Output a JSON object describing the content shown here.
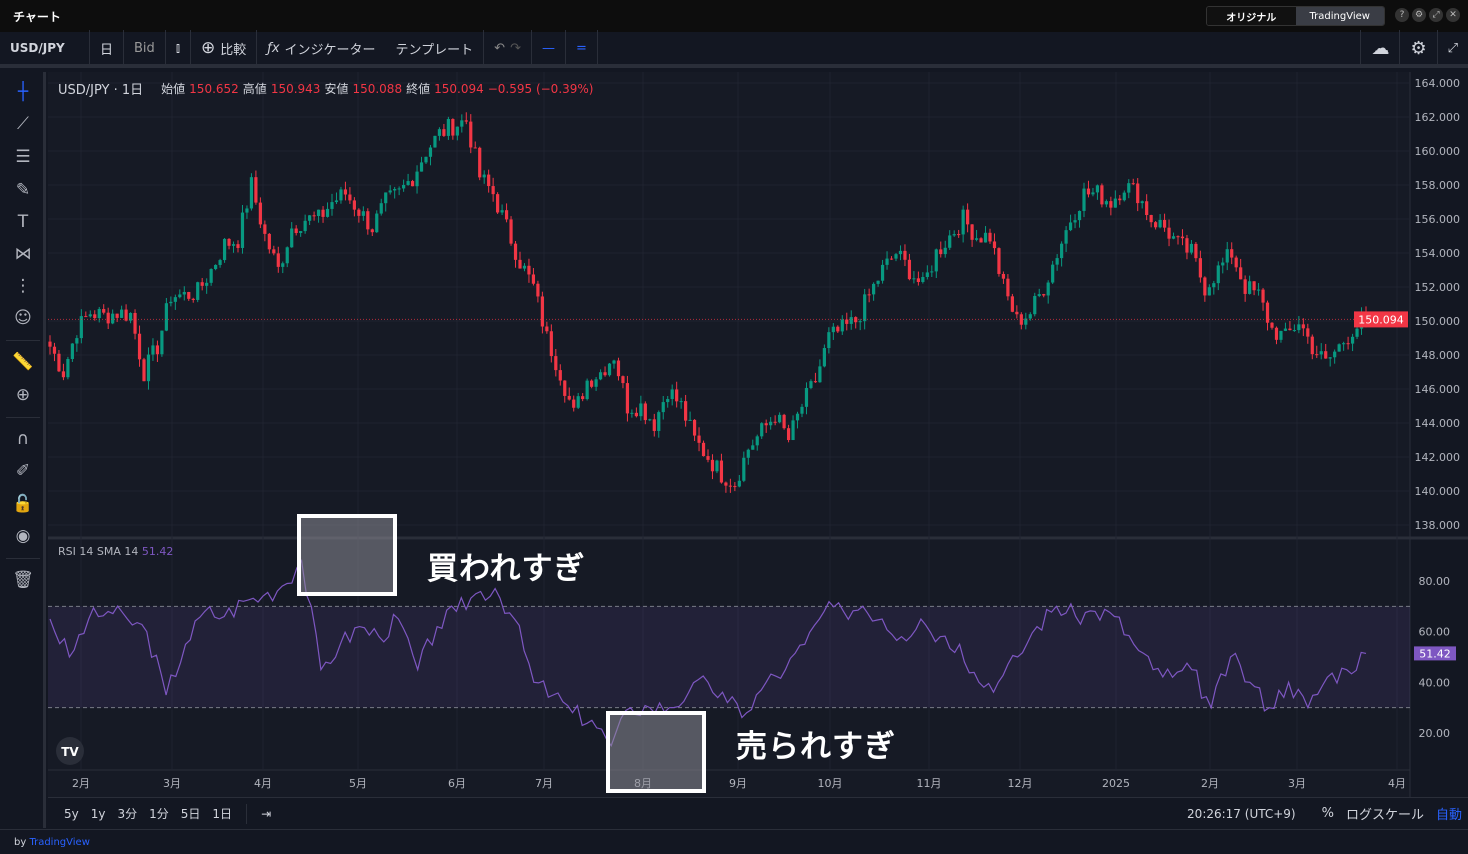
{
  "window": {
    "title": "チャート",
    "mode_tabs": [
      "オリジナル",
      "TradingView"
    ],
    "active_mode": "オリジナル",
    "buttons": [
      "?",
      "⚙",
      "⤢",
      "✕"
    ]
  },
  "toolbar": {
    "symbol": "USD/JPY",
    "interval": "日",
    "price_type": "Bid",
    "compare": "比較",
    "indicators": "インジケーター",
    "templates": "テンプレート"
  },
  "legend": {
    "symbol": "USD/JPY · 1日",
    "open_label": "始値",
    "open": "150.652",
    "high_label": "高値",
    "high": "150.943",
    "low_label": "安値",
    "low": "150.088",
    "close_label": "終値",
    "close": "150.094",
    "change": "−0.595 (−0.39%)"
  },
  "rsi_legend": {
    "name": "RSI 14 SMA 14",
    "value": "51.42"
  },
  "colors": {
    "up": "#089981",
    "down": "#f23645",
    "rsi": "#7e57c2",
    "bg": "#131722"
  },
  "annotations": {
    "overbought": "買われすぎ",
    "oversold": "売られすぎ"
  },
  "bottom": {
    "ranges": [
      "5y",
      "1y",
      "3分",
      "1分",
      "5日",
      "1日"
    ],
    "time": "20:26:17 (UTC+9)",
    "percent": "%",
    "log": "ログスケール",
    "auto": "自動"
  },
  "footer": {
    "by": "by",
    "brand": "TradingView"
  },
  "chart_data": [
    {
      "type": "candlestick",
      "yticks": [
        "164.000",
        "162.000",
        "160.000",
        "158.000",
        "156.000",
        "154.000",
        "152.000",
        "150.000",
        "148.000",
        "146.000",
        "144.000",
        "142.000",
        "140.000",
        "138.000"
      ],
      "ylim": [
        137.5,
        164.5
      ],
      "last_price": "150.094",
      "xticks": [
        "2月",
        "3月",
        "4月",
        "5月",
        "6月",
        "7月",
        "8月",
        "9月",
        "10月",
        "11月",
        "12月",
        "2025",
        "2月",
        "3月",
        "4月"
      ],
      "closes": [
        148.5,
        147,
        149.5,
        150.5,
        150.3,
        150.5,
        150.4,
        147,
        148.5,
        151.5,
        151.5,
        151.7,
        153,
        154.5,
        154.8,
        158,
        155,
        153,
        155.5,
        156,
        156,
        157,
        157.5,
        156.5,
        155.5,
        157,
        157.5,
        158.5,
        160,
        161,
        161.5,
        161.8,
        158.5,
        157.5,
        155.5,
        153.5,
        152,
        149,
        147,
        144.5,
        146.5,
        147,
        148,
        145,
        145,
        144,
        146,
        145,
        143,
        142,
        141,
        140.5,
        142.5,
        143.5,
        144.5,
        143,
        145,
        146.5,
        149,
        149.5,
        150,
        151.5,
        153,
        154,
        153,
        152,
        154,
        155,
        156,
        155,
        155,
        152,
        150,
        150.5,
        152,
        154,
        156,
        157.5,
        157.5,
        157,
        158,
        157.5,
        156,
        155.5,
        154.5,
        154,
        152,
        153,
        154,
        152,
        151.5,
        149.5,
        149,
        150,
        148.5,
        147.5,
        148.5,
        149.5,
        150.094
      ]
    },
    {
      "type": "line",
      "name": "RSI 14 SMA 14",
      "ylim": [
        10,
        90
      ],
      "yticks": [
        "80.00",
        "60.00",
        "40.00",
        "20.00"
      ],
      "bands": [
        30,
        70
      ],
      "last": "51.42",
      "values": [
        65,
        50,
        65,
        68,
        65,
        60,
        35,
        55,
        68,
        66,
        72,
        74,
        78,
        88,
        45,
        55,
        62,
        58,
        65,
        45,
        62,
        68,
        75,
        77,
        65,
        40,
        35,
        28,
        25,
        15,
        30,
        30,
        30,
        36,
        40,
        32,
        28,
        40,
        45,
        55,
        68,
        68,
        70,
        65,
        58,
        65,
        58,
        55,
        40,
        40,
        50,
        62,
        70,
        66,
        68,
        66,
        55,
        45,
        42,
        45,
        30,
        50,
        40,
        30,
        40,
        30,
        42,
        45,
        51.42
      ]
    }
  ]
}
